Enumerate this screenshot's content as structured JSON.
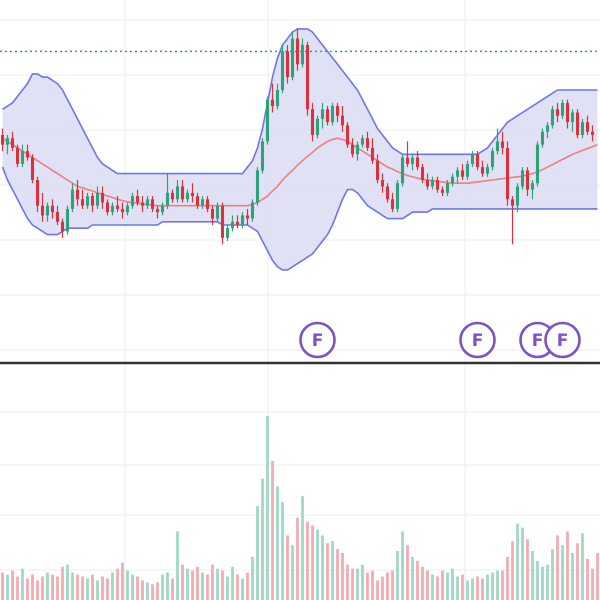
{
  "chart_data": {
    "type": "candlestick",
    "x_count": 120,
    "price_ylim": [
      52,
      108
    ],
    "volume_ylim": [
      0,
      120
    ],
    "grid": true,
    "reference_line": 100,
    "colors": {
      "up": "#2ea37a",
      "down": "#d9323c",
      "band_fill": "#dcdcf3",
      "band_line": "#6f75e6",
      "mid_line": "#ef7f7f",
      "ref_line": "#22a07a",
      "volume_up": "#9fd8c4",
      "volume_down": "#f3aab0",
      "marker": "#7c52c8",
      "grid": "#ececec",
      "divider": "#333333"
    },
    "candles": [
      {
        "o": 87.0,
        "h": 88.0,
        "l": 84.5,
        "c": 85.5
      },
      {
        "o": 85.5,
        "h": 87.0,
        "l": 84.0,
        "c": 86.5
      },
      {
        "o": 86.5,
        "h": 87.5,
        "l": 84.5,
        "c": 85.0
      },
      {
        "o": 85.0,
        "h": 85.5,
        "l": 82.0,
        "c": 82.5
      },
      {
        "o": 82.5,
        "h": 85.5,
        "l": 82.0,
        "c": 84.5
      },
      {
        "o": 84.5,
        "h": 85.5,
        "l": 83.0,
        "c": 83.5
      },
      {
        "o": 83.5,
        "h": 84.0,
        "l": 79.5,
        "c": 80.0
      },
      {
        "o": 80.0,
        "h": 80.5,
        "l": 75.0,
        "c": 76.0
      },
      {
        "o": 76.0,
        "h": 78.0,
        "l": 73.5,
        "c": 74.5
      },
      {
        "o": 74.5,
        "h": 76.5,
        "l": 73.5,
        "c": 76.0
      },
      {
        "o": 76.0,
        "h": 77.0,
        "l": 74.0,
        "c": 75.0
      },
      {
        "o": 75.0,
        "h": 76.0,
        "l": 73.0,
        "c": 73.5
      },
      {
        "o": 73.5,
        "h": 74.0,
        "l": 71.0,
        "c": 72.0
      },
      {
        "o": 72.0,
        "h": 76.0,
        "l": 71.5,
        "c": 75.5
      },
      {
        "o": 75.5,
        "h": 79.5,
        "l": 75.0,
        "c": 78.5
      },
      {
        "o": 78.5,
        "h": 80.0,
        "l": 76.0,
        "c": 77.0
      },
      {
        "o": 77.0,
        "h": 78.5,
        "l": 75.5,
        "c": 76.0
      },
      {
        "o": 76.0,
        "h": 78.0,
        "l": 75.5,
        "c": 77.5
      },
      {
        "o": 77.5,
        "h": 78.0,
        "l": 75.0,
        "c": 76.0
      },
      {
        "o": 76.0,
        "h": 79.0,
        "l": 75.5,
        "c": 78.0
      },
      {
        "o": 78.0,
        "h": 79.0,
        "l": 75.5,
        "c": 76.5
      },
      {
        "o": 76.5,
        "h": 77.0,
        "l": 74.5,
        "c": 75.0
      },
      {
        "o": 75.0,
        "h": 76.5,
        "l": 74.5,
        "c": 76.0
      },
      {
        "o": 76.0,
        "h": 77.5,
        "l": 75.0,
        "c": 75.5
      },
      {
        "o": 75.5,
        "h": 76.5,
        "l": 74.0,
        "c": 75.0
      },
      {
        "o": 75.0,
        "h": 76.5,
        "l": 74.5,
        "c": 76.0
      },
      {
        "o": 76.0,
        "h": 78.0,
        "l": 75.5,
        "c": 77.5
      },
      {
        "o": 77.5,
        "h": 78.5,
        "l": 76.0,
        "c": 76.5
      },
      {
        "o": 76.5,
        "h": 77.5,
        "l": 75.0,
        "c": 76.0
      },
      {
        "o": 76.0,
        "h": 77.5,
        "l": 75.5,
        "c": 77.0
      },
      {
        "o": 77.0,
        "h": 77.5,
        "l": 75.0,
        "c": 75.5
      },
      {
        "o": 75.5,
        "h": 76.0,
        "l": 74.0,
        "c": 75.0
      },
      {
        "o": 75.0,
        "h": 76.5,
        "l": 74.5,
        "c": 76.0
      },
      {
        "o": 76.0,
        "h": 81.0,
        "l": 75.5,
        "c": 78.0
      },
      {
        "o": 78.0,
        "h": 78.5,
        "l": 76.5,
        "c": 77.0
      },
      {
        "o": 77.0,
        "h": 80.0,
        "l": 76.5,
        "c": 79.0
      },
      {
        "o": 79.0,
        "h": 80.0,
        "l": 76.5,
        "c": 77.0
      },
      {
        "o": 77.0,
        "h": 78.5,
        "l": 76.5,
        "c": 78.0
      },
      {
        "o": 78.0,
        "h": 79.5,
        "l": 76.5,
        "c": 77.5
      },
      {
        "o": 77.5,
        "h": 78.0,
        "l": 75.5,
        "c": 76.0
      },
      {
        "o": 76.0,
        "h": 77.5,
        "l": 75.5,
        "c": 77.0
      },
      {
        "o": 77.0,
        "h": 77.5,
        "l": 75.0,
        "c": 75.5
      },
      {
        "o": 75.5,
        "h": 76.0,
        "l": 73.0,
        "c": 74.0
      },
      {
        "o": 74.0,
        "h": 76.5,
        "l": 73.5,
        "c": 76.0
      },
      {
        "o": 76.0,
        "h": 76.5,
        "l": 70.0,
        "c": 71.0
      },
      {
        "o": 71.0,
        "h": 73.0,
        "l": 70.5,
        "c": 72.5
      },
      {
        "o": 72.5,
        "h": 74.5,
        "l": 72.0,
        "c": 73.5
      },
      {
        "o": 73.5,
        "h": 74.5,
        "l": 72.5,
        "c": 73.0
      },
      {
        "o": 73.0,
        "h": 75.0,
        "l": 72.5,
        "c": 74.5
      },
      {
        "o": 74.5,
        "h": 75.5,
        "l": 73.0,
        "c": 74.0
      },
      {
        "o": 74.0,
        "h": 77.0,
        "l": 73.5,
        "c": 76.5
      },
      {
        "o": 76.5,
        "h": 82.0,
        "l": 76.0,
        "c": 81.5
      },
      {
        "o": 81.5,
        "h": 86.5,
        "l": 81.0,
        "c": 86.0
      },
      {
        "o": 86.0,
        "h": 93.0,
        "l": 85.5,
        "c": 92.5
      },
      {
        "o": 92.5,
        "h": 95.0,
        "l": 90.5,
        "c": 91.5
      },
      {
        "o": 91.5,
        "h": 95.0,
        "l": 91.0,
        "c": 94.0
      },
      {
        "o": 94.0,
        "h": 101.0,
        "l": 93.5,
        "c": 100.0
      },
      {
        "o": 100.0,
        "h": 101.0,
        "l": 95.0,
        "c": 96.0
      },
      {
        "o": 96.0,
        "h": 103.0,
        "l": 95.5,
        "c": 102.0
      },
      {
        "o": 102.0,
        "h": 103.5,
        "l": 97.0,
        "c": 98.0
      },
      {
        "o": 98.0,
        "h": 102.0,
        "l": 97.5,
        "c": 101.0
      },
      {
        "o": 101.0,
        "h": 101.5,
        "l": 90.0,
        "c": 91.0
      },
      {
        "o": 91.0,
        "h": 92.0,
        "l": 86.0,
        "c": 87.0
      },
      {
        "o": 87.0,
        "h": 90.0,
        "l": 86.5,
        "c": 89.5
      },
      {
        "o": 89.5,
        "h": 92.0,
        "l": 88.0,
        "c": 91.0
      },
      {
        "o": 91.0,
        "h": 91.5,
        "l": 88.5,
        "c": 89.0
      },
      {
        "o": 89.0,
        "h": 92.0,
        "l": 88.5,
        "c": 91.5
      },
      {
        "o": 91.5,
        "h": 92.0,
        "l": 89.0,
        "c": 90.0
      },
      {
        "o": 90.0,
        "h": 91.5,
        "l": 87.5,
        "c": 88.5
      },
      {
        "o": 88.5,
        "h": 89.0,
        "l": 85.0,
        "c": 85.5
      },
      {
        "o": 85.5,
        "h": 86.5,
        "l": 83.5,
        "c": 84.0
      },
      {
        "o": 84.0,
        "h": 86.0,
        "l": 83.0,
        "c": 85.5
      },
      {
        "o": 85.5,
        "h": 87.0,
        "l": 85.0,
        "c": 86.5
      },
      {
        "o": 86.5,
        "h": 87.5,
        "l": 84.5,
        "c": 85.0
      },
      {
        "o": 85.0,
        "h": 86.5,
        "l": 82.5,
        "c": 83.0
      },
      {
        "o": 83.0,
        "h": 84.0,
        "l": 79.5,
        "c": 80.0
      },
      {
        "o": 80.0,
        "h": 81.0,
        "l": 78.0,
        "c": 79.0
      },
      {
        "o": 79.0,
        "h": 79.5,
        "l": 76.5,
        "c": 77.0
      },
      {
        "o": 77.0,
        "h": 78.0,
        "l": 75.0,
        "c": 75.5
      },
      {
        "o": 75.5,
        "h": 80.0,
        "l": 75.0,
        "c": 79.5
      },
      {
        "o": 79.5,
        "h": 84.0,
        "l": 79.0,
        "c": 83.5
      },
      {
        "o": 83.5,
        "h": 86.0,
        "l": 82.0,
        "c": 82.5
      },
      {
        "o": 82.5,
        "h": 84.0,
        "l": 81.5,
        "c": 83.5
      },
      {
        "o": 83.5,
        "h": 84.5,
        "l": 81.5,
        "c": 82.0
      },
      {
        "o": 82.0,
        "h": 82.5,
        "l": 79.5,
        "c": 80.0
      },
      {
        "o": 80.0,
        "h": 81.0,
        "l": 78.5,
        "c": 79.0
      },
      {
        "o": 79.0,
        "h": 80.5,
        "l": 78.5,
        "c": 80.0
      },
      {
        "o": 80.0,
        "h": 80.5,
        "l": 78.0,
        "c": 78.5
      },
      {
        "o": 78.5,
        "h": 79.0,
        "l": 77.5,
        "c": 78.0
      },
      {
        "o": 78.0,
        "h": 80.0,
        "l": 77.5,
        "c": 79.5
      },
      {
        "o": 79.5,
        "h": 81.0,
        "l": 79.0,
        "c": 80.5
      },
      {
        "o": 80.5,
        "h": 82.0,
        "l": 79.5,
        "c": 81.5
      },
      {
        "o": 81.5,
        "h": 82.5,
        "l": 80.0,
        "c": 80.5
      },
      {
        "o": 80.5,
        "h": 83.0,
        "l": 80.0,
        "c": 82.5
      },
      {
        "o": 82.5,
        "h": 84.5,
        "l": 82.0,
        "c": 84.0
      },
      {
        "o": 84.0,
        "h": 84.5,
        "l": 81.5,
        "c": 82.0
      },
      {
        "o": 82.0,
        "h": 83.0,
        "l": 80.5,
        "c": 81.0
      },
      {
        "o": 81.0,
        "h": 82.5,
        "l": 80.5,
        "c": 82.0
      },
      {
        "o": 82.0,
        "h": 85.0,
        "l": 81.5,
        "c": 84.5
      },
      {
        "o": 84.5,
        "h": 88.0,
        "l": 84.0,
        "c": 86.0
      },
      {
        "o": 86.0,
        "h": 87.5,
        "l": 84.0,
        "c": 85.0
      },
      {
        "o": 85.0,
        "h": 86.0,
        "l": 76.0,
        "c": 77.0
      },
      {
        "o": 77.0,
        "h": 77.5,
        "l": 70.0,
        "c": 76.0
      },
      {
        "o": 76.0,
        "h": 79.5,
        "l": 75.0,
        "c": 79.0
      },
      {
        "o": 79.0,
        "h": 82.0,
        "l": 78.5,
        "c": 81.5
      },
      {
        "o": 81.5,
        "h": 82.0,
        "l": 77.5,
        "c": 78.5
      },
      {
        "o": 78.5,
        "h": 80.0,
        "l": 77.0,
        "c": 79.5
      },
      {
        "o": 79.5,
        "h": 86.0,
        "l": 79.0,
        "c": 85.5
      },
      {
        "o": 85.5,
        "h": 88.0,
        "l": 85.0,
        "c": 87.5
      },
      {
        "o": 87.5,
        "h": 89.0,
        "l": 86.5,
        "c": 88.5
      },
      {
        "o": 88.5,
        "h": 91.5,
        "l": 88.0,
        "c": 91.0
      },
      {
        "o": 91.0,
        "h": 92.0,
        "l": 89.0,
        "c": 90.0
      },
      {
        "o": 90.0,
        "h": 92.5,
        "l": 89.5,
        "c": 92.0
      },
      {
        "o": 92.0,
        "h": 92.5,
        "l": 88.0,
        "c": 89.0
      },
      {
        "o": 89.0,
        "h": 91.0,
        "l": 87.5,
        "c": 90.5
      },
      {
        "o": 90.5,
        "h": 91.0,
        "l": 86.5,
        "c": 87.0
      },
      {
        "o": 87.0,
        "h": 89.5,
        "l": 86.5,
        "c": 89.0
      },
      {
        "o": 89.0,
        "h": 90.0,
        "l": 87.0,
        "c": 87.5
      },
      {
        "o": 87.5,
        "h": 88.5,
        "l": 86.0,
        "c": 87.0
      }
    ],
    "bollinger_upper": [
      91,
      91.5,
      92,
      93,
      94,
      95,
      96.5,
      96.5,
      96,
      96,
      95.5,
      95,
      94,
      92.5,
      91,
      89.5,
      88,
      86.5,
      85,
      83.5,
      82.5,
      82,
      81.5,
      81,
      81,
      81,
      81,
      81,
      81,
      81,
      81,
      81,
      81,
      81,
      81,
      81,
      81,
      81,
      81,
      81,
      81,
      81,
      81,
      81,
      81,
      81,
      81,
      81,
      81,
      82,
      83,
      85,
      88,
      92,
      96,
      99,
      101,
      102,
      103,
      103.5,
      103.5,
      103.5,
      103,
      102,
      101,
      100,
      99,
      98,
      97,
      96,
      95,
      94,
      92.5,
      91,
      89.5,
      88,
      87,
      86,
      85,
      84.5,
      84,
      84,
      84,
      84,
      84,
      84,
      84,
      84,
      84,
      84,
      84,
      84,
      84,
      84,
      84,
      84,
      84.5,
      85,
      86,
      87,
      88,
      89,
      89.5,
      90,
      90.5,
      91,
      91.5,
      92,
      92.5,
      93,
      93.5,
      94,
      94,
      94,
      94,
      94,
      94,
      94,
      94,
      94
    ],
    "bollinger_lower": [
      82,
      80,
      78.5,
      77,
      75.5,
      74,
      73,
      72.5,
      72,
      71.5,
      71.5,
      71.5,
      72,
      72.5,
      72.5,
      72.5,
      72.5,
      72.5,
      73,
      73,
      73,
      73,
      73,
      73,
      73,
      73,
      73,
      73,
      73,
      73,
      73,
      73,
      73.5,
      73.5,
      73.5,
      73.5,
      73.5,
      73.5,
      73.5,
      73.5,
      73.5,
      73.5,
      73.5,
      73.5,
      73,
      73,
      73,
      73,
      73,
      73,
      72.5,
      72,
      70.5,
      69,
      67.5,
      66.5,
      66,
      66,
      66.5,
      67,
      67.5,
      68,
      68.5,
      69.5,
      70.5,
      71.5,
      73,
      75,
      77,
      78.5,
      78.5,
      78,
      77,
      76,
      75.5,
      75,
      74.5,
      74,
      74,
      74,
      74,
      74.5,
      75,
      75,
      75,
      75,
      75.5,
      75.5,
      75.5,
      75.5,
      75.5,
      75.5,
      75.5,
      75.5,
      75.5,
      75.5,
      75.5,
      75.5,
      75.5,
      75.5,
      75.5,
      75.5,
      75.5,
      75.5,
      75.5,
      75.5,
      75.5,
      75.5,
      75.5,
      75.5,
      75.5,
      75.5,
      75.5,
      75.5,
      75.5,
      75.5,
      75.5,
      75.5,
      75.5,
      75.5
    ],
    "bollinger_mid": [
      86.5,
      86,
      85.5,
      85,
      84.5,
      84,
      83.5,
      83,
      82.5,
      82,
      81.5,
      81,
      80.5,
      80,
      79.5,
      79,
      78.8,
      78.5,
      78.3,
      78,
      77.8,
      77.5,
      77.3,
      77,
      76.8,
      76.6,
      76.5,
      76.4,
      76.3,
      76.2,
      76.1,
      76,
      76,
      76,
      76,
      76,
      76,
      76,
      76,
      76,
      76,
      76,
      76,
      76,
      76,
      76,
      76,
      76,
      76,
      76,
      76.2,
      76.5,
      77,
      77.5,
      78.3,
      79,
      80,
      80.8,
      81.5,
      82.3,
      83,
      83.7,
      84.3,
      85,
      85.5,
      86,
      86.3,
      86.5,
      86.3,
      86,
      85.5,
      85,
      84.5,
      84,
      83.5,
      83,
      82.5,
      82,
      81.7,
      81.3,
      81,
      80.7,
      80.5,
      80.3,
      80.1,
      80,
      79.9,
      79.8,
      79.7,
      79.6,
      79.5,
      79.5,
      79.5,
      79.5,
      79.6,
      79.7,
      79.8,
      79.9,
      80,
      80.1,
      80.2,
      80.3,
      80.4,
      80.5,
      80.6,
      80.8,
      81,
      81.3,
      81.6,
      82,
      82.4,
      82.8,
      83.2,
      83.6,
      84,
      84.3,
      84.6,
      84.9,
      85.2,
      85.5
    ],
    "volume": [
      14,
      13,
      15,
      12,
      16,
      11,
      13,
      10,
      12,
      14,
      13,
      12,
      17,
      18,
      14,
      13,
      12,
      11,
      13,
      10,
      12,
      11,
      14,
      16,
      19,
      15,
      13,
      12,
      10,
      9,
      8,
      9,
      13,
      14,
      11,
      35,
      18,
      16,
      15,
      17,
      14,
      13,
      18,
      16,
      15,
      12,
      17,
      13,
      11,
      14,
      22,
      48,
      62,
      94,
      71,
      58,
      50,
      33,
      28,
      42,
      53,
      40,
      38,
      36,
      33,
      29,
      30,
      26,
      24,
      18,
      16,
      16,
      18,
      14,
      15,
      10,
      12,
      14,
      15,
      25,
      35,
      28,
      22,
      20,
      17,
      15,
      13,
      12,
      15,
      14,
      16,
      12,
      13,
      10,
      11,
      12,
      11,
      13,
      14,
      15,
      15,
      22,
      30,
      39,
      37,
      31,
      25,
      20,
      17,
      18,
      26,
      33,
      28,
      35,
      24,
      29,
      34,
      21,
      16,
      24
    ],
    "markers": [
      {
        "label": "F",
        "x": 63
      },
      {
        "label": "F",
        "x": 95
      },
      {
        "label": "F",
        "x": 107
      },
      {
        "label": "F",
        "x": 112
      }
    ]
  }
}
